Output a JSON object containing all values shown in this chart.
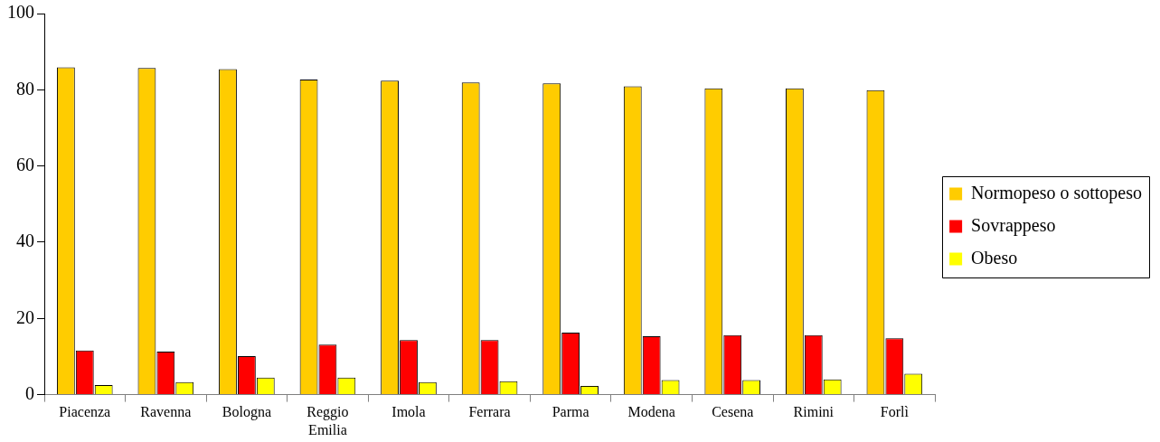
{
  "chart_data": {
    "type": "bar",
    "categories": [
      "Piacenza",
      "Ravenna",
      "Bologna",
      "Reggio Emilia",
      "Imola",
      "Ferrara",
      "Parma",
      "Modena",
      "Cesena",
      "Rimini",
      "Forlì"
    ],
    "series": [
      {
        "name": "Normopeso o sottopeso",
        "color": "#ffcc00",
        "values": [
          85.9,
          85.7,
          85.4,
          82.7,
          82.4,
          81.9,
          81.7,
          80.9,
          80.4,
          80.4,
          79.9
        ]
      },
      {
        "name": "Sovrappeso",
        "color": "#ff0000",
        "values": [
          11.6,
          11.3,
          10.1,
          13.1,
          14.3,
          14.3,
          16.3,
          15.3,
          15.6,
          15.6,
          14.8
        ]
      },
      {
        "name": "Obeso",
        "color": "#ffff00",
        "values": [
          2.5,
          3.3,
          4.5,
          4.5,
          3.3,
          3.5,
          2.3,
          3.8,
          3.8,
          4.0,
          5.5
        ]
      }
    ],
    "ylim": [
      0,
      100
    ],
    "yticks": [
      0,
      20,
      40,
      60,
      80,
      100
    ],
    "grid": false,
    "legend": "right"
  }
}
